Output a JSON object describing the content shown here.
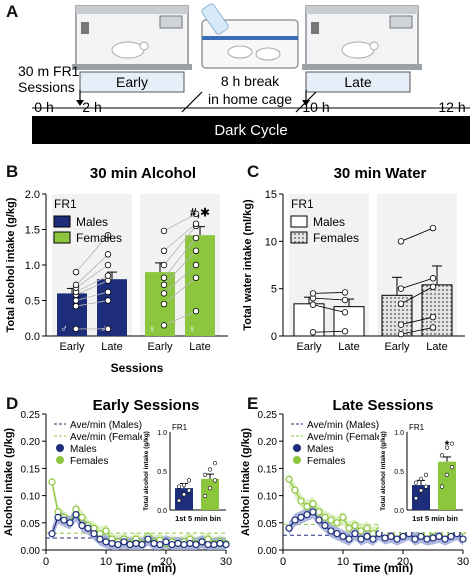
{
  "colors": {
    "male": "#1d2d7a",
    "female": "#8cc63f",
    "female_light": "#d6ecb1",
    "male_light": "#9aa6d6",
    "timeline": "#000000",
    "session_box": "#e6eef9"
  },
  "panel_A": {
    "label": "A",
    "sessions_label_1": "30 m FR1",
    "sessions_label_2": "Sessions",
    "early_box": "Early",
    "late_box": "Late",
    "break_1": "8 h break",
    "break_2": "in home cage",
    "tick_0": "0 h",
    "tick_2": "2 h",
    "tick_10": "10 h",
    "tick_12": "12 h",
    "dark_cycle": "Dark Cycle",
    "icons": [
      "operant-chamber-icon",
      "home-cage-icon",
      "operant-chamber-icon"
    ]
  },
  "panel_B": {
    "label": "B",
    "chart_data": {
      "type": "bar",
      "title": "30 min Alcohol",
      "xlabel": "Sessions",
      "ylabel": "Total alcohol intake (g/kg)",
      "ylim": [
        0,
        2.0
      ],
      "yticks": [
        "0.0",
        "0.5",
        "1.0",
        "1.5",
        "2.0"
      ],
      "categories": [
        "Early",
        "Late",
        "Early",
        "Late"
      ],
      "legend_title": "FR1",
      "legend": [
        "Males",
        "Females"
      ],
      "annotation": "#,✱",
      "sex_symbols": [
        "♂",
        "♂",
        "♀",
        "♀"
      ],
      "series": [
        {
          "name": "Males",
          "early": 0.6,
          "late": 0.8,
          "err_early": 0.07,
          "err_late": 0.1,
          "individual_early": [
            0.1,
            0.42,
            0.5,
            0.58,
            0.62,
            0.68,
            0.72,
            0.9
          ],
          "individual_late": [
            0.1,
            0.5,
            0.62,
            0.78,
            0.85,
            1.0,
            1.15,
            1.42
          ]
        },
        {
          "name": "Females",
          "early": 0.9,
          "late": 1.42,
          "err_early": 0.13,
          "err_late": 0.12,
          "individual_early": [
            0.15,
            0.45,
            0.6,
            0.72,
            0.82,
            1.0,
            1.2,
            1.48
          ],
          "individual_late": [
            0.35,
            0.82,
            1.0,
            1.2,
            1.38,
            1.55,
            1.58,
            1.72
          ]
        }
      ]
    }
  },
  "panel_C": {
    "label": "C",
    "chart_data": {
      "type": "bar",
      "title": "30 min Water",
      "ylabel": "Total water intake (ml/kg)",
      "ylim": [
        0,
        15
      ],
      "yticks": [
        "0",
        "5",
        "10",
        "15"
      ],
      "categories": [
        "Early",
        "Late",
        "Early",
        "Late"
      ],
      "legend_title": "FR1",
      "legend": [
        "Males",
        "Females"
      ],
      "series": [
        {
          "name": "Males",
          "early": 3.4,
          "late": 3.1,
          "err_early": 0.7,
          "err_late": 0.8,
          "individual_early": [
            0.4,
            3.3,
            4.0,
            4.5
          ],
          "individual_late": [
            0.5,
            2.5,
            3.8,
            4.6
          ]
        },
        {
          "name": "Females",
          "early": 4.3,
          "late": 5.4,
          "err_early": 1.9,
          "err_late": 2.0,
          "individual_early": [
            0.2,
            1.2,
            3.4,
            5.0,
            10.0
          ],
          "individual_late": [
            0.9,
            2.0,
            5.2,
            6.1,
            11.4
          ]
        }
      ]
    }
  },
  "panel_D": {
    "label": "D",
    "chart_data": {
      "type": "line",
      "title": "Early Sessions",
      "xlabel": "Time (min)",
      "ylabel": "Alcohol intake (g/kg)",
      "xlim": [
        0,
        30
      ],
      "ylim": [
        0,
        0.25
      ],
      "xticks": [
        "0",
        "10",
        "20",
        "30"
      ],
      "yticks": [
        "0.00",
        "0.05",
        "0.10",
        "0.15",
        "0.20",
        "0.25"
      ],
      "legend": [
        "Ave/min (Males)",
        "Ave/min (Females)",
        "Males",
        "Females"
      ],
      "avg_males": 0.022,
      "avg_females": 0.031,
      "x": [
        1,
        2,
        3,
        4,
        5,
        6,
        7,
        8,
        9,
        10,
        11,
        12,
        13,
        14,
        15,
        16,
        17,
        18,
        19,
        20,
        21,
        22,
        23,
        24,
        25,
        26,
        27,
        28,
        29,
        30
      ],
      "series": [
        {
          "name": "Males",
          "values": [
            0.03,
            0.06,
            0.055,
            0.05,
            0.065,
            0.045,
            0.04,
            0.03,
            0.02,
            0.015,
            0.012,
            0.01,
            0.015,
            0.01,
            0.012,
            0.01,
            0.02,
            0.012,
            0.01,
            0.015,
            0.01,
            0.012,
            0.01,
            0.012,
            0.01,
            0.015,
            0.01,
            0.01,
            0.012,
            0.01
          ]
        },
        {
          "name": "Females",
          "values": [
            0.125,
            0.07,
            0.06,
            0.05,
            0.075,
            0.06,
            0.045,
            0.04,
            0.03,
            0.035,
            0.02,
            0.015,
            0.02,
            0.012,
            0.02,
            0.012,
            0.025,
            0.015,
            0.018,
            0.012,
            0.015,
            0.012,
            0.015,
            0.02,
            0.012,
            0.015,
            0.02,
            0.012,
            0.015,
            0.012
          ]
        }
      ],
      "inset": {
        "title": "FR1",
        "ylabel": "Total alcohol intake (g/kg)",
        "xlabel": "1st 5 min bin",
        "ylim": [
          0,
          1.0
        ],
        "yticks": [
          "0.0",
          "0.5",
          "1.0"
        ],
        "values": [
          0.28,
          0.4
        ],
        "individual_males": [
          0.12,
          0.2,
          0.25,
          0.3,
          0.32,
          0.38
        ],
        "individual_females": [
          0.18,
          0.28,
          0.38,
          0.45,
          0.52,
          0.6
        ],
        "annotation": ""
      }
    }
  },
  "panel_E": {
    "label": "E",
    "chart_data": {
      "type": "line",
      "title": "Late Sessions",
      "xlabel": "Time (min)",
      "ylabel": "Alcohol intake (g/kg)",
      "xlim": [
        0,
        30
      ],
      "ylim": [
        0,
        0.25
      ],
      "xticks": [
        "0",
        "10",
        "20",
        "30"
      ],
      "yticks": [
        "0.00",
        "0.05",
        "0.10",
        "0.15",
        "0.20",
        "0.25"
      ],
      "legend": [
        "Ave/min (Males)",
        "Ave/min (Females)",
        "Males",
        "Females"
      ],
      "avg_males": 0.027,
      "avg_females": 0.047,
      "x": [
        1,
        2,
        3,
        4,
        5,
        6,
        7,
        8,
        9,
        10,
        11,
        12,
        13,
        14,
        15,
        16,
        17,
        18,
        19,
        20,
        21,
        22,
        23,
        24,
        25,
        26,
        27,
        28,
        29,
        30
      ],
      "series": [
        {
          "name": "Males",
          "values": [
            0.04,
            0.055,
            0.06,
            0.065,
            0.07,
            0.055,
            0.045,
            0.035,
            0.03,
            0.025,
            0.02,
            0.03,
            0.02,
            0.025,
            0.02,
            0.03,
            0.022,
            0.025,
            0.02,
            0.025,
            0.03,
            0.02,
            0.025,
            0.02,
            0.022,
            0.025,
            0.02,
            0.025,
            0.03,
            0.02
          ]
        },
        {
          "name": "Females",
          "values": [
            0.13,
            0.11,
            0.09,
            0.08,
            0.085,
            0.07,
            0.06,
            0.055,
            0.05,
            0.06,
            0.04,
            0.045,
            0.035,
            0.04,
            0.03,
            0.035,
            0.03,
            0.04,
            0.03,
            0.035,
            0.03,
            0.04,
            0.035,
            0.03,
            0.035,
            0.04,
            0.03,
            0.035,
            0.04,
            0.035
          ]
        }
      ],
      "inset": {
        "title": "FR1",
        "ylabel": "Total alcohol intake (g/kg)",
        "xlabel": "1st 5 min bin",
        "ylim": [
          0,
          1.0
        ],
        "yticks": [
          "0.0",
          "0.5",
          "1.0"
        ],
        "values": [
          0.32,
          0.62
        ],
        "individual_males": [
          0.15,
          0.25,
          0.3,
          0.35,
          0.4,
          0.45
        ],
        "individual_females": [
          0.3,
          0.45,
          0.55,
          0.7,
          0.8,
          0.85
        ],
        "annotation": "*"
      }
    }
  }
}
